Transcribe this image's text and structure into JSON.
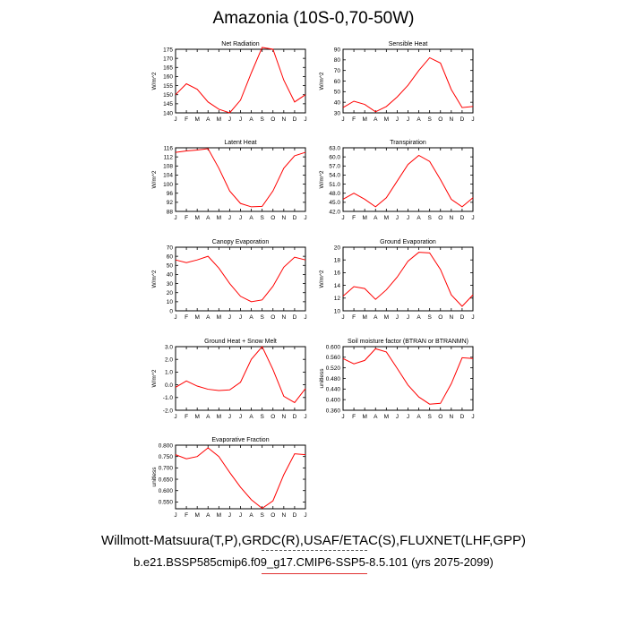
{
  "title": "Amazonia (10S-0,70-50W)",
  "footer": {
    "line1": "Willmott-Matsuura(T,P),GRDC(R),USAF/ETAC(S),FLUXNET(LHF,GPP)",
    "line2": "b.e21.BSSP585cmip6.f09_g17.CMIP6-SSP5-8.5.101 (yrs 2075-2099)"
  },
  "colors": {
    "series": "#ff0000",
    "axis": "#000000"
  },
  "months": [
    "J",
    "F",
    "M",
    "A",
    "M",
    "J",
    "J",
    "A",
    "S",
    "O",
    "N",
    "D",
    "J"
  ],
  "chart_data": [
    {
      "type": "line",
      "title": "Net Radiation",
      "ylabel": "W/m^2",
      "ylim": [
        140,
        175
      ],
      "yticks": [
        140,
        145,
        150,
        155,
        160,
        165,
        170,
        175
      ],
      "ytick_labels": [
        "140",
        "145",
        "150",
        "155",
        "160",
        "165",
        "170",
        "175"
      ],
      "categories": [
        "J",
        "F",
        "M",
        "A",
        "M",
        "J",
        "J",
        "A",
        "S",
        "O",
        "N",
        "D",
        "J"
      ],
      "values": [
        150,
        156,
        153,
        146,
        142,
        140,
        147,
        162,
        176,
        175,
        158,
        146,
        150
      ]
    },
    {
      "type": "line",
      "title": "Sensible Heat",
      "ylabel": "W/m^2",
      "ylim": [
        30,
        90
      ],
      "yticks": [
        30,
        40,
        50,
        60,
        70,
        80,
        90
      ],
      "ytick_labels": [
        "30",
        "40",
        "50",
        "60",
        "70",
        "80",
        "90"
      ],
      "categories": [
        "J",
        "F",
        "M",
        "A",
        "M",
        "J",
        "J",
        "A",
        "S",
        "O",
        "N",
        "D",
        "J"
      ],
      "values": [
        35,
        41,
        38,
        31,
        36,
        45,
        56,
        70,
        82,
        77,
        52,
        35,
        36
      ]
    },
    {
      "type": "line",
      "title": "Latent Heat",
      "ylabel": "W/m^2",
      "ylim": [
        88,
        116
      ],
      "yticks": [
        88,
        92,
        96,
        100,
        104,
        108,
        112,
        116
      ],
      "ytick_labels": [
        "88",
        "92",
        "96",
        "100",
        "104",
        "108",
        "112",
        "116"
      ],
      "categories": [
        "J",
        "F",
        "M",
        "A",
        "M",
        "J",
        "J",
        "A",
        "S",
        "O",
        "N",
        "D",
        "J"
      ],
      "values": [
        114,
        114.6,
        115,
        115.6,
        107,
        97,
        91.5,
        90,
        90.2,
        97,
        107,
        112.5,
        114
      ]
    },
    {
      "type": "line",
      "title": "Transpiration",
      "ylabel": "W/m^2",
      "ylim": [
        42,
        63
      ],
      "yticks": [
        42,
        45,
        48,
        51,
        54,
        57,
        60,
        63
      ],
      "ytick_labels": [
        "42.0",
        "45.0",
        "48.0",
        "51.0",
        "54.0",
        "57.0",
        "60.0",
        "63.0"
      ],
      "categories": [
        "J",
        "F",
        "M",
        "A",
        "M",
        "J",
        "J",
        "A",
        "S",
        "O",
        "N",
        "D",
        "J"
      ],
      "values": [
        46,
        48,
        46,
        43.5,
        46.5,
        52,
        57.5,
        60.5,
        58.5,
        52.5,
        46,
        43.5,
        46.5
      ]
    },
    {
      "type": "line",
      "title": "Canopy Evaporation",
      "ylabel": "W/m^2",
      "ylim": [
        0,
        70
      ],
      "yticks": [
        0,
        10,
        20,
        30,
        40,
        50,
        60,
        70
      ],
      "ytick_labels": [
        "0",
        "10",
        "20",
        "30",
        "40",
        "50",
        "60",
        "70"
      ],
      "categories": [
        "J",
        "F",
        "M",
        "A",
        "M",
        "J",
        "J",
        "A",
        "S",
        "O",
        "N",
        "D",
        "J"
      ],
      "values": [
        56,
        53,
        56,
        60,
        47,
        30,
        16,
        10,
        12,
        27,
        48,
        59,
        56
      ]
    },
    {
      "type": "line",
      "title": "Ground Evaporation",
      "ylabel": "W/m^2",
      "ylim": [
        10,
        20
      ],
      "yticks": [
        10,
        12,
        14,
        16,
        18,
        20
      ],
      "ytick_labels": [
        "10",
        "12",
        "14",
        "16",
        "18",
        "20"
      ],
      "categories": [
        "J",
        "F",
        "M",
        "A",
        "M",
        "J",
        "J",
        "A",
        "S",
        "O",
        "N",
        "D",
        "J"
      ],
      "values": [
        12.3,
        13.8,
        13.5,
        11.8,
        13.3,
        15.3,
        17.8,
        19.2,
        19.1,
        16.5,
        12.5,
        10.7,
        12.5
      ]
    },
    {
      "type": "line",
      "title": "Ground Heat + Snow Melt",
      "ylabel": "W/m^2",
      "ylim": [
        -2,
        3
      ],
      "yticks": [
        -2,
        -1,
        0,
        1,
        2,
        3
      ],
      "ytick_labels": [
        "-2.0",
        "-1.0",
        "0.0",
        "1.0",
        "2.0",
        "3.0"
      ],
      "categories": [
        "J",
        "F",
        "M",
        "A",
        "M",
        "J",
        "J",
        "A",
        "S",
        "O",
        "N",
        "D",
        "J"
      ],
      "values": [
        -0.2,
        0.3,
        -0.1,
        -0.35,
        -0.45,
        -0.4,
        0.2,
        2,
        3,
        1.2,
        -0.9,
        -1.4,
        -0.3
      ]
    },
    {
      "type": "line",
      "title": "Soil moisture factor (BTRAN or BTRANMN)",
      "ylabel": "unitless",
      "ylim": [
        0.36,
        0.6
      ],
      "yticks": [
        0.36,
        0.4,
        0.44,
        0.48,
        0.52,
        0.56,
        0.6
      ],
      "ytick_labels": [
        "0.360",
        "0.400",
        "0.440",
        "0.480",
        "0.520",
        "0.560",
        "0.600"
      ],
      "categories": [
        "J",
        "F",
        "M",
        "A",
        "M",
        "J",
        "J",
        "A",
        "S",
        "O",
        "N",
        "D",
        "J"
      ],
      "values": [
        0.555,
        0.535,
        0.548,
        0.592,
        0.58,
        0.518,
        0.455,
        0.41,
        0.383,
        0.386,
        0.46,
        0.558,
        0.555
      ]
    },
    {
      "type": "line",
      "title": "Evaporative Fraction",
      "ylabel": "unitless",
      "ylim": [
        0.52,
        0.8
      ],
      "yticks": [
        0.55,
        0.6,
        0.65,
        0.7,
        0.75,
        0.8
      ],
      "ytick_labels": [
        "0.550",
        "0.600",
        "0.650",
        "0.700",
        "0.750",
        "0.800"
      ],
      "categories": [
        "J",
        "F",
        "M",
        "A",
        "M",
        "J",
        "J",
        "A",
        "S",
        "O",
        "N",
        "D",
        "J"
      ],
      "values": [
        0.758,
        0.74,
        0.75,
        0.788,
        0.75,
        0.68,
        0.615,
        0.56,
        0.522,
        0.555,
        0.67,
        0.762,
        0.758
      ]
    }
  ]
}
